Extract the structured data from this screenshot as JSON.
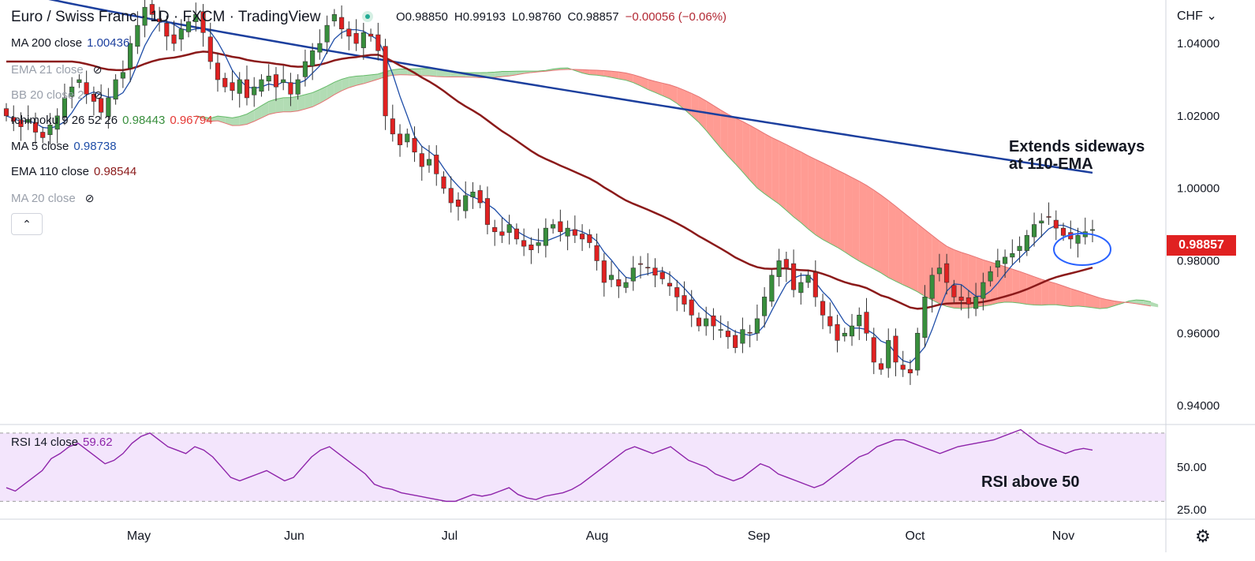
{
  "header": {
    "symbol_title": "Euro / Swiss Franc · 1D · FXCM · TradingView",
    "ohlc": {
      "open": "O0.98850",
      "high": "H0.99193",
      "low": "L0.98760",
      "close": "C0.98857",
      "change": "−0.00056 (−0.06%)"
    }
  },
  "indicators": [
    {
      "label": "MA 200 close",
      "value": "1.00436",
      "color": "#1c3f9e",
      "visible": true
    },
    {
      "label": "EMA 21 close",
      "value": "",
      "color": "#9aa0ab",
      "visible": false
    },
    {
      "label": "BB 20 close 2",
      "value": "",
      "color": "#9aa0ab",
      "visible": false
    },
    {
      "label": "Ichimoku 9 26 52 26",
      "value": "0.98443",
      "value2": "0.96794",
      "color": "#388e3c",
      "color2": "#e53935",
      "visible": true
    },
    {
      "label": "MA 5 close",
      "value": "0.98738",
      "color": "#1f4ea8",
      "visible": true
    },
    {
      "label": "EMA 110 close",
      "value": "0.98544",
      "color": "#8b1a1a",
      "visible": true
    },
    {
      "label": "MA 20 close",
      "value": "",
      "color": "#9aa0ab",
      "visible": false
    }
  ],
  "rsi": {
    "label": "RSI 14 close",
    "value": "59.62",
    "color": "#8e24aa"
  },
  "price_axis": {
    "currency": "CHF",
    "ticks": [
      "1.04000",
      "1.02000",
      "1.00000",
      "0.98000",
      "0.96000",
      "0.94000"
    ],
    "last_price": "0.98857",
    "last_price_color": "#e02121"
  },
  "rsi_axis": {
    "ticks": [
      "50.00",
      "25.00"
    ]
  },
  "time_axis": {
    "labels": [
      "May",
      "Jun",
      "Jul",
      "Aug",
      "Sep",
      "Oct",
      "Nov"
    ]
  },
  "annotations": {
    "sideways": [
      "Extends sideways",
      "at 110-EMA"
    ],
    "rsi": "RSI above 50"
  },
  "colors": {
    "bull": "#388e3c",
    "bear": "#e02121",
    "ma200": "#1c3f9e",
    "ema110": "#8b1a1a",
    "ma5": "#1f4ea8",
    "cloud_bull": "#a5d6a7",
    "cloud_bear": "#ff8a80",
    "rsi_line": "#8e24aa",
    "rsi_band": "#f3e5fc"
  },
  "chart_data": {
    "type": "candlestick",
    "title": "Euro / Swiss Franc · 1D · FXCM · TradingView",
    "xlabel": "",
    "ylabel": "CHF",
    "ylim": [
      0.935,
      1.052
    ],
    "x_month_labels": [
      "May",
      "Jun",
      "Jul",
      "Aug",
      "Sep",
      "Oct",
      "Nov"
    ],
    "closes": [
      1.02,
      1.0185,
      1.017,
      1.019,
      1.0155,
      1.014,
      1.0175,
      1.02,
      1.025,
      1.028,
      1.03,
      1.026,
      1.024,
      1.021,
      1.025,
      1.03,
      1.032,
      1.04,
      1.045,
      1.05,
      1.048,
      1.046,
      1.042,
      1.04,
      1.044,
      1.046,
      1.048,
      1.043,
      1.035,
      1.03,
      1.028,
      1.027,
      1.03,
      1.025,
      1.028,
      1.03,
      1.031,
      1.028,
      1.03,
      1.026,
      1.03,
      1.035,
      1.038,
      1.04,
      1.045,
      1.048,
      1.044,
      1.042,
      1.04,
      1.043,
      1.042,
      1.038,
      1.02,
      1.015,
      1.012,
      1.015,
      1.01,
      1.006,
      1.008,
      1.004,
      1.0,
      0.996,
      0.995,
      0.998,
      0.999,
      0.996,
      0.99,
      0.988,
      0.987,
      0.99,
      0.986,
      0.984,
      0.983,
      0.985,
      0.989,
      0.99,
      0.988,
      0.989,
      0.987,
      0.986,
      0.985,
      0.98,
      0.974,
      0.976,
      0.973,
      0.974,
      0.978,
      0.979,
      0.978,
      0.976,
      0.975,
      0.973,
      0.97,
      0.968,
      0.965,
      0.962,
      0.964,
      0.962,
      0.961,
      0.959,
      0.956,
      0.961,
      0.96,
      0.964,
      0.97,
      0.976,
      0.98,
      0.978,
      0.972,
      0.974,
      0.976,
      0.97,
      0.965,
      0.962,
      0.958,
      0.96,
      0.962,
      0.965,
      0.96,
      0.952,
      0.95,
      0.958,
      0.952,
      0.95,
      0.949,
      0.96,
      0.97,
      0.976,
      0.978,
      0.974,
      0.97,
      0.969,
      0.968,
      0.97,
      0.974,
      0.977,
      0.98,
      0.981,
      0.982,
      0.984,
      0.987,
      0.99,
      0.991,
      0.992,
      0.989,
      0.987,
      0.986,
      0.987,
      0.988,
      0.9886
    ],
    "series": [
      {
        "name": "MA 200 close",
        "last": 1.00436
      },
      {
        "name": "EMA 110 close",
        "last": 0.98544
      },
      {
        "name": "MA 5 close",
        "last": 0.98738
      },
      {
        "name": "Ichimoku span A",
        "last": 0.98443
      },
      {
        "name": "Ichimoku span B",
        "last": 0.96794
      }
    ],
    "rsi": {
      "name": "RSI 14 close",
      "ylim": [
        20,
        75
      ],
      "band": [
        30,
        70
      ],
      "values": [
        38,
        36,
        40,
        44,
        48,
        55,
        58,
        62,
        64,
        60,
        56,
        52,
        54,
        58,
        64,
        68,
        70,
        66,
        62,
        60,
        58,
        62,
        60,
        56,
        50,
        44,
        42,
        44,
        46,
        48,
        45,
        42,
        44,
        50,
        56,
        60,
        62,
        58,
        54,
        50,
        46,
        40,
        38,
        37,
        35,
        34,
        33,
        32,
        31,
        30,
        30,
        32,
        34,
        33,
        34,
        36,
        38,
        34,
        32,
        31,
        33,
        34,
        35,
        37,
        40,
        44,
        48,
        52,
        56,
        60,
        62,
        60,
        58,
        60,
        62,
        58,
        54,
        52,
        50,
        46,
        44,
        42,
        44,
        48,
        52,
        50,
        46,
        44,
        42,
        40,
        38,
        40,
        44,
        48,
        52,
        56,
        58,
        62,
        64,
        66,
        66,
        64,
        62,
        60,
        58,
        60,
        62,
        63,
        64,
        65,
        66,
        68,
        70,
        72,
        68,
        64,
        62,
        60,
        58,
        60,
        61,
        60
      ]
    }
  }
}
